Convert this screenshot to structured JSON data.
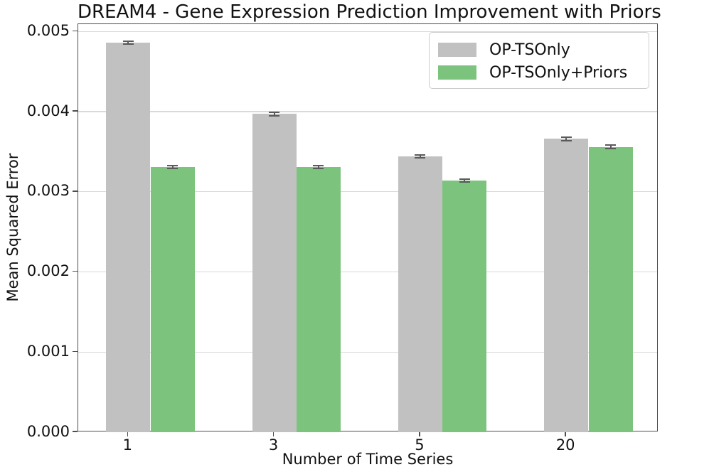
{
  "chart_data": {
    "type": "bar",
    "title": "DREAM4 - Gene Expression Prediction Improvement with Priors",
    "xlabel": "Number of Time Series",
    "ylabel": "Mean Squared Error",
    "categories": [
      "1",
      "3",
      "5",
      "20"
    ],
    "series": [
      {
        "name": "OP-TSOnly",
        "color": "#c1c1c1",
        "values": [
          0.00486,
          0.00397,
          0.00344,
          0.00366
        ],
        "errors": [
          2e-05,
          2e-05,
          2e-05,
          2e-05
        ]
      },
      {
        "name": "OP-TSOnly+Priors",
        "color": "#7cc47e",
        "values": [
          0.00331,
          0.00331,
          0.00314,
          0.00356
        ],
        "errors": [
          2e-05,
          2e-05,
          2e-05,
          2e-05
        ]
      }
    ],
    "ylim": [
      0,
      0.00509
    ],
    "yticks": [
      "0.000",
      "0.001",
      "0.002",
      "0.003",
      "0.004",
      "0.005"
    ],
    "grid": "horizontal",
    "legend_position": "upper right",
    "error_bar_color": "#5a5a5a",
    "gridline_color": "#d9d9d9"
  }
}
